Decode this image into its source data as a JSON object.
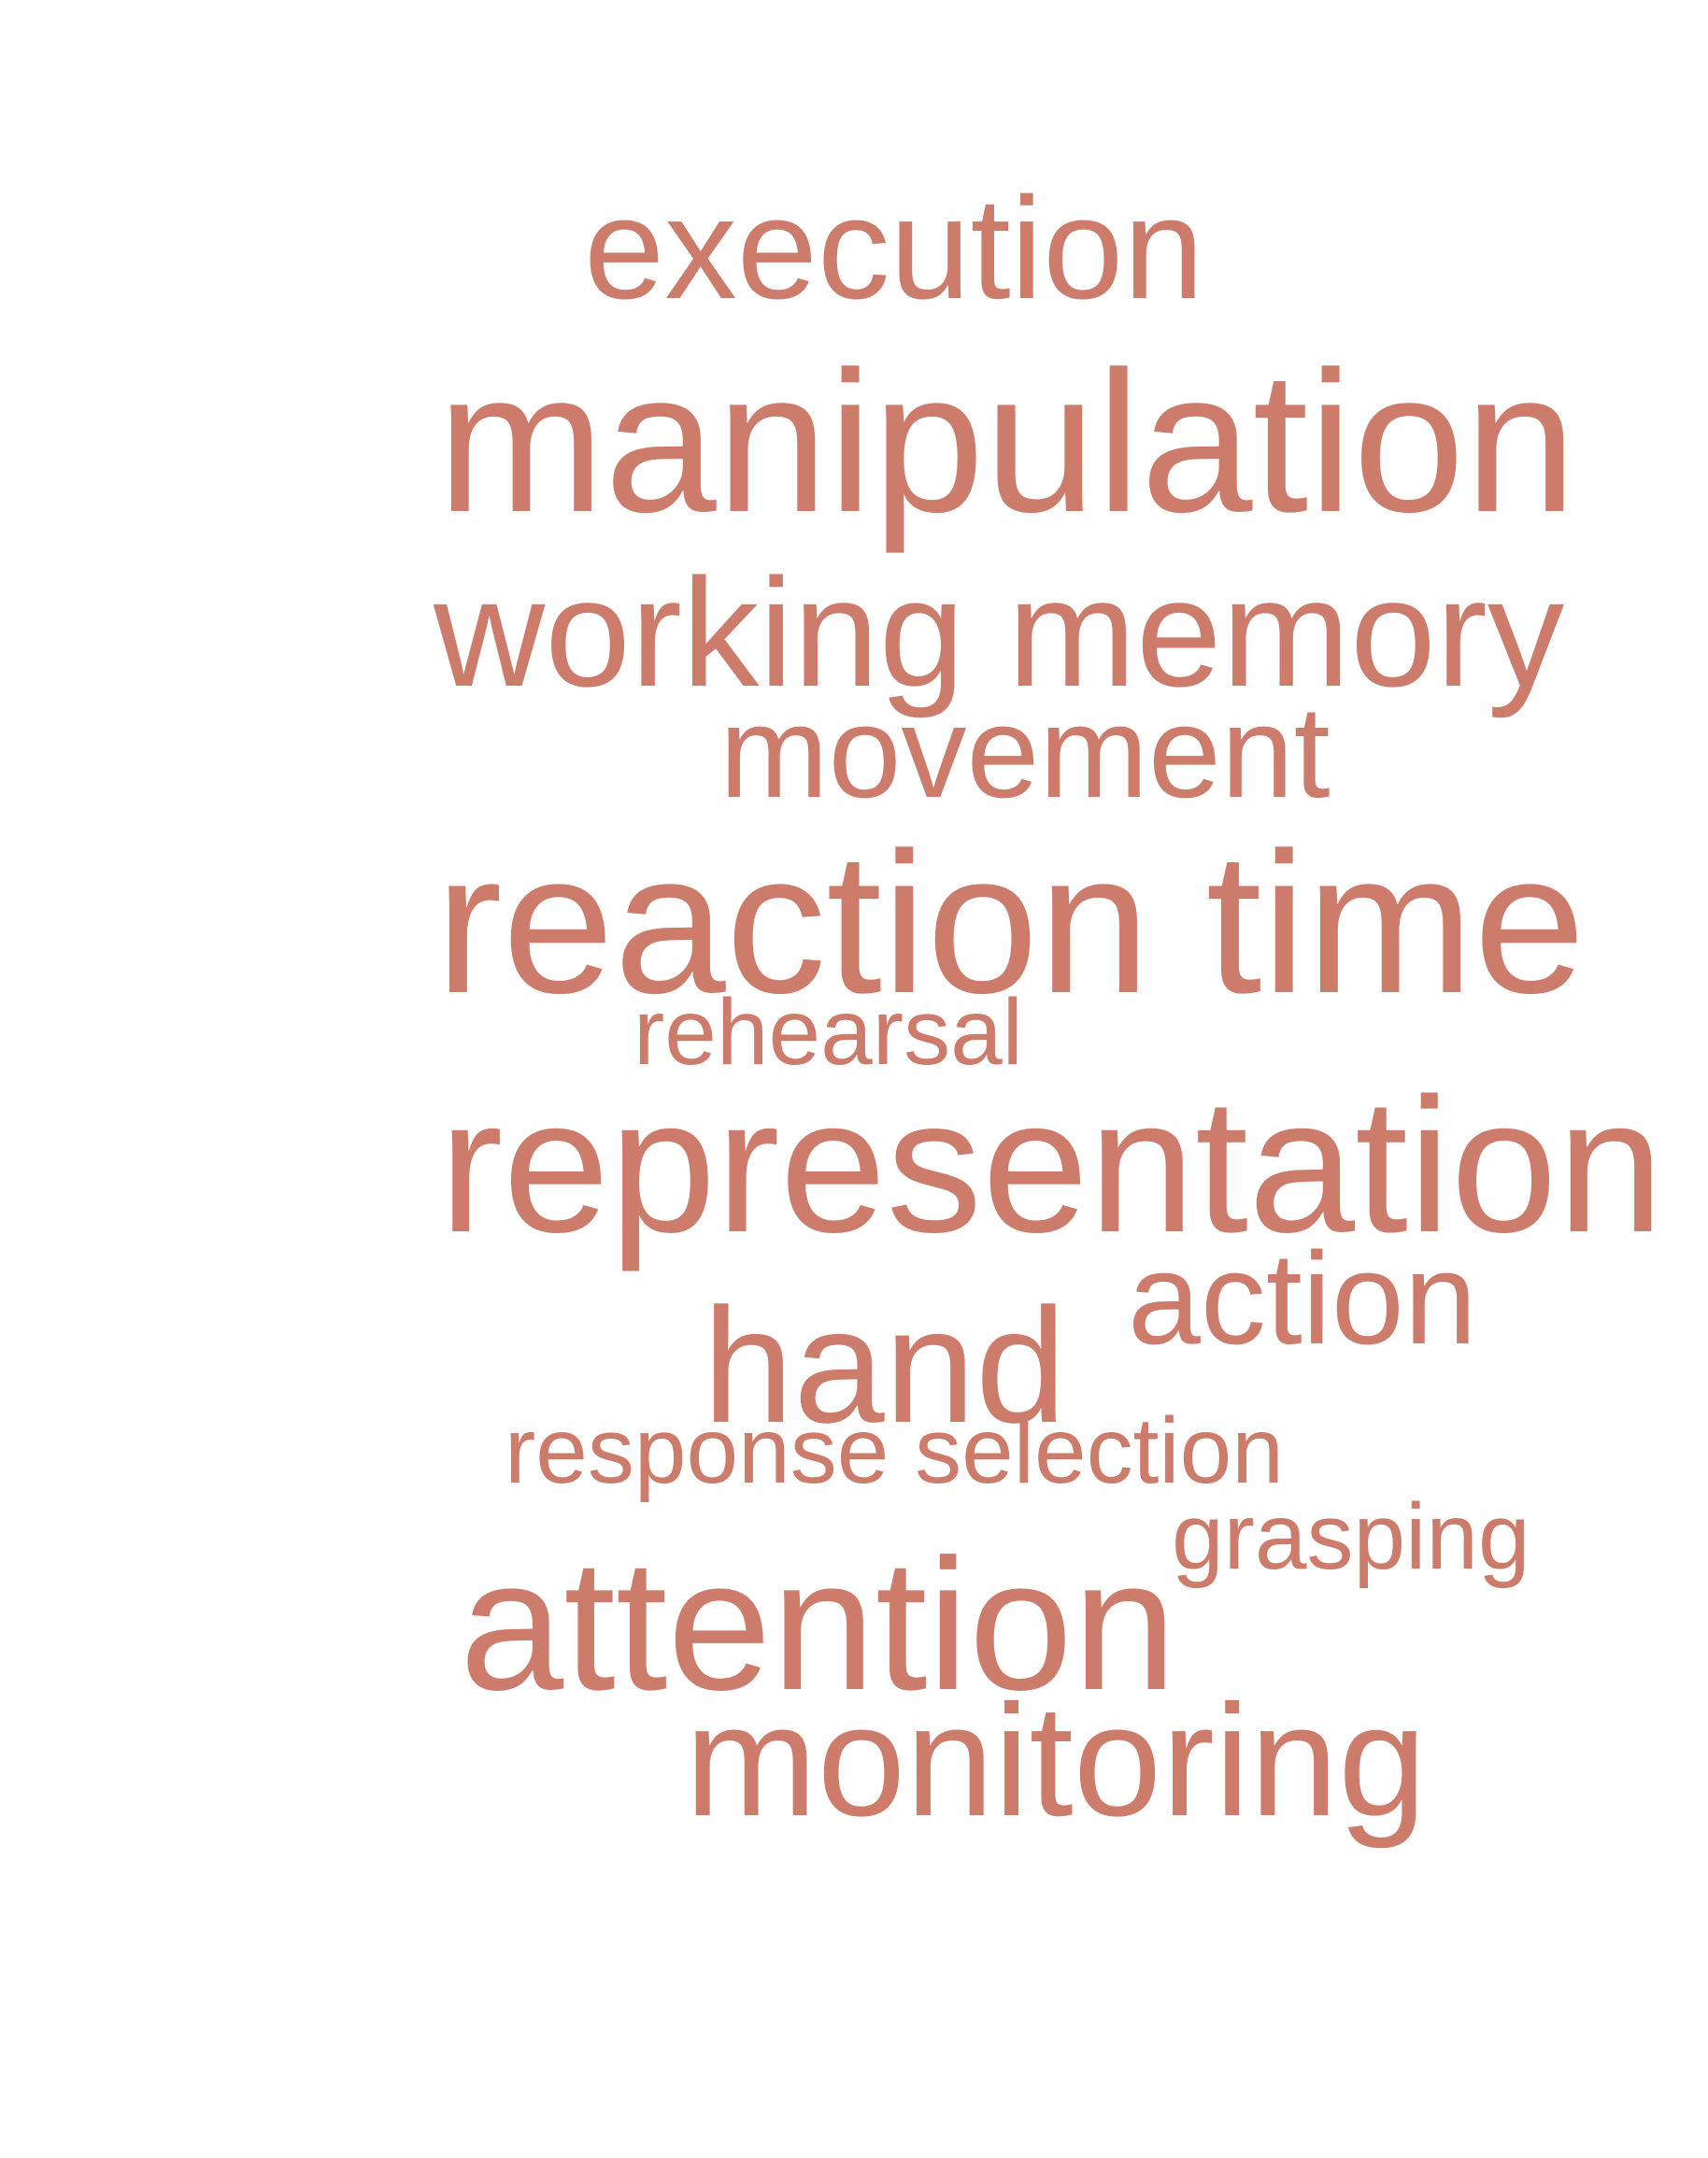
{
  "theme": {
    "word_color": "#cd7b6a",
    "background": "#ffffff"
  },
  "words": {
    "execution": "execution",
    "manipulation": "manipulation",
    "working_memory": "working memory",
    "movement": "movement",
    "reaction_time": "reaction time",
    "rehearsal": "rehearsal",
    "representation": "representation",
    "action": "action",
    "hand": "hand",
    "response_selection": "response selection",
    "grasping": "grasping",
    "attention": "attention",
    "monitoring": "monitoring"
  }
}
